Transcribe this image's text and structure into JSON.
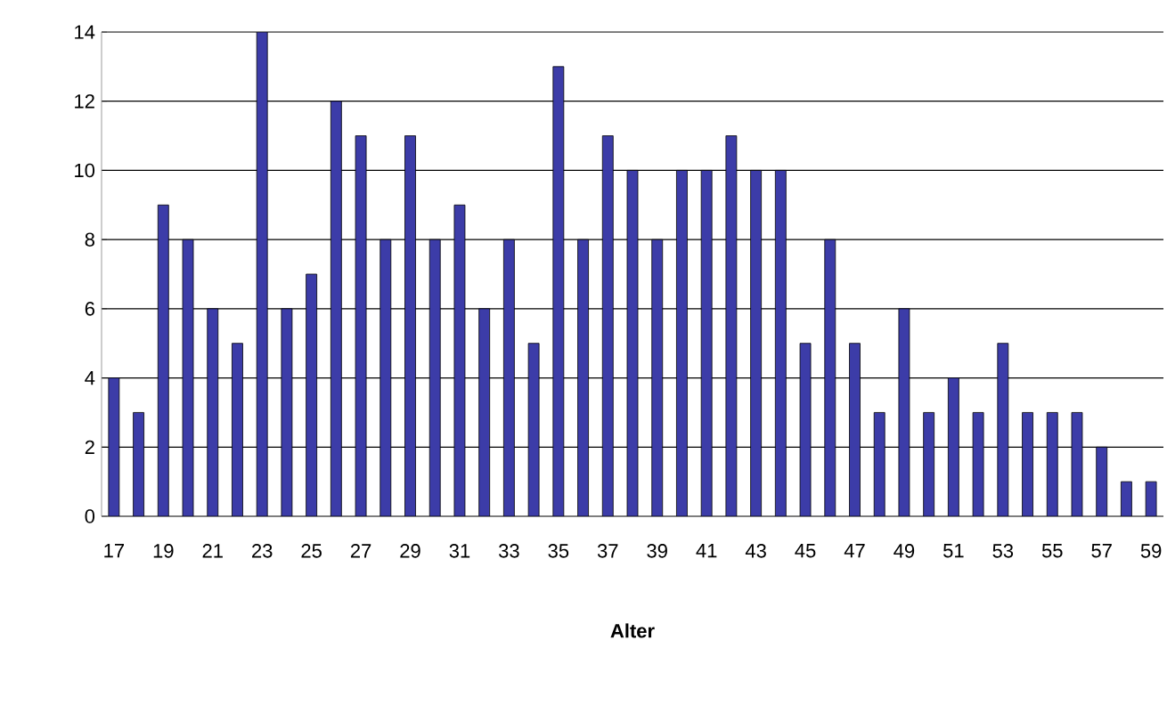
{
  "chart_data": {
    "type": "bar",
    "xlabel": "Alter",
    "categories": [
      "17",
      null,
      "19",
      null,
      "21",
      null,
      "23",
      null,
      "25",
      null,
      "27",
      null,
      "29",
      null,
      "31",
      null,
      "33",
      null,
      "35",
      null,
      "37",
      null,
      "39",
      null,
      "41",
      null,
      "43",
      null,
      "45",
      null,
      "47",
      null,
      "49",
      null,
      "51",
      null,
      "53",
      null,
      "55",
      null,
      "57",
      null,
      "59"
    ],
    "values": [
      4,
      3,
      9,
      8,
      6,
      5,
      14,
      6,
      7,
      12,
      11,
      8,
      11,
      8,
      9,
      6,
      8,
      5,
      13,
      8,
      11,
      10,
      8,
      10,
      10,
      11,
      10,
      10,
      5,
      8,
      5,
      3,
      6,
      3,
      4,
      3,
      5,
      3,
      3,
      3,
      2,
      1,
      1
    ],
    "color": "#3c3ca8",
    "ylim": [
      0,
      14
    ],
    "yticks": [
      0,
      2,
      4,
      6,
      8,
      10,
      12,
      14
    ],
    "grid": "y"
  }
}
